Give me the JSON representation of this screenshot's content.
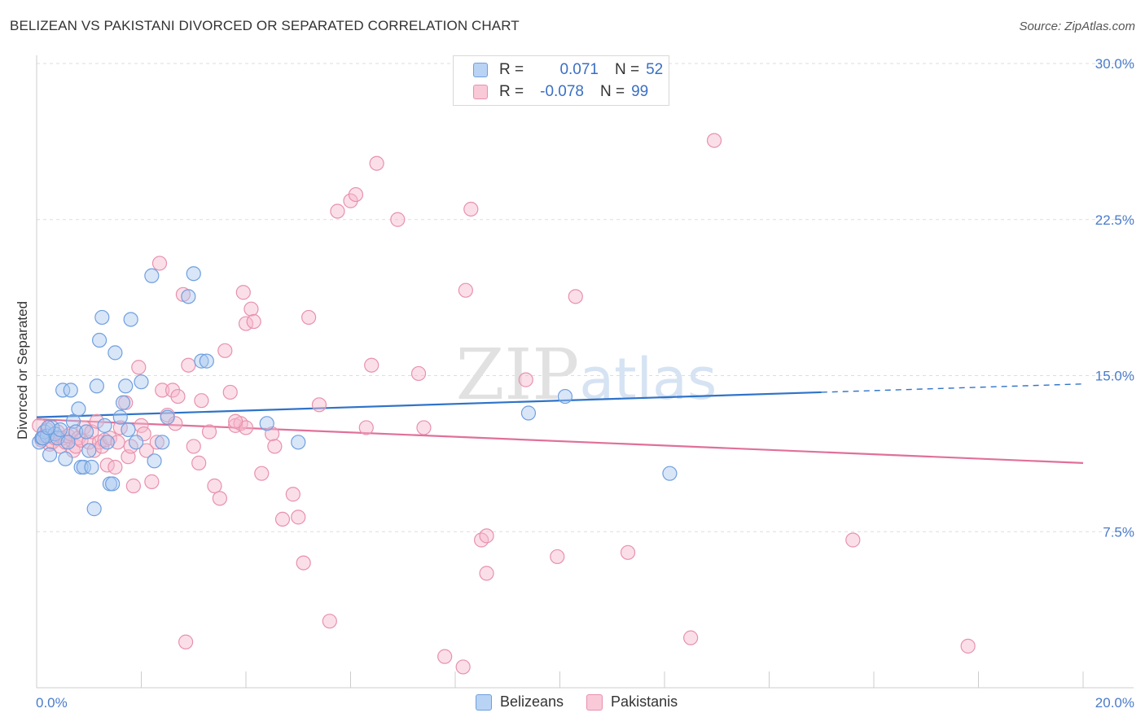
{
  "header": {
    "title": "BELIZEAN VS PAKISTANI DIVORCED OR SEPARATED CORRELATION CHART",
    "source": "Source: ZipAtlas.com"
  },
  "legend": {
    "rows": [
      {
        "r_label": "R =",
        "r_value": "0.071",
        "n_label": "N =",
        "n_value": "52"
      },
      {
        "r_label": "R =",
        "r_value": "-0.078",
        "n_label": "N =",
        "n_value": "99"
      }
    ]
  },
  "bottom_legend": [
    "Belizeans",
    "Pakistanis"
  ],
  "colors": {
    "blue_fill": "#a8c8f0",
    "blue_stroke": "#6f9fdf",
    "blue_line": "#2f73c9",
    "pink_fill": "#f7b8cc",
    "pink_stroke": "#e891ad",
    "pink_line": "#e0709a",
    "grid": "#dddddd",
    "axis_text": "#4a7cc9"
  },
  "chart_data": {
    "type": "scatter",
    "title": "BELIZEAN VS PAKISTANI DIVORCED OR SEPARATED CORRELATION CHART",
    "xlabel": "",
    "ylabel": "Divorced or Separated",
    "xlim": [
      0,
      20
    ],
    "ylim": [
      0,
      30
    ],
    "x_tick_labels": [
      "0.0%",
      "20.0%"
    ],
    "y_tick_labels": [
      "7.5%",
      "15.0%",
      "22.5%",
      "30.0%"
    ],
    "y_ticks": [
      7.5,
      15.0,
      22.5,
      30.0
    ],
    "grid": true,
    "legend_position": "top-center",
    "watermark": "ZIPatlas",
    "series": [
      {
        "name": "Belizeans",
        "r": 0.071,
        "n": 52,
        "trend": {
          "x0": 0,
          "y0": 13.0,
          "x1": 15.0,
          "y1": 14.2,
          "dashed_to_x": 20,
          "dashed_to_y": 14.6
        },
        "points": [
          [
            0.05,
            11.8
          ],
          [
            0.1,
            12.0
          ],
          [
            0.15,
            12.3
          ],
          [
            0.2,
            12.1
          ],
          [
            0.25,
            11.2
          ],
          [
            0.3,
            12.5
          ],
          [
            0.35,
            12.2
          ],
          [
            0.4,
            12.0
          ],
          [
            0.45,
            12.4
          ],
          [
            0.5,
            14.3
          ],
          [
            0.55,
            11.0
          ],
          [
            0.65,
            14.3
          ],
          [
            0.7,
            12.8
          ],
          [
            0.75,
            12.3
          ],
          [
            0.8,
            13.4
          ],
          [
            0.85,
            10.6
          ],
          [
            0.9,
            10.6
          ],
          [
            0.95,
            12.3
          ],
          [
            1.0,
            11.4
          ],
          [
            1.05,
            10.6
          ],
          [
            1.1,
            8.6
          ],
          [
            1.15,
            14.5
          ],
          [
            1.2,
            16.7
          ],
          [
            1.25,
            17.8
          ],
          [
            1.3,
            12.6
          ],
          [
            1.35,
            11.8
          ],
          [
            1.4,
            9.8
          ],
          [
            1.45,
            9.8
          ],
          [
            1.5,
            16.1
          ],
          [
            1.6,
            13.0
          ],
          [
            1.65,
            13.7
          ],
          [
            1.7,
            14.5
          ],
          [
            1.75,
            12.4
          ],
          [
            1.8,
            17.7
          ],
          [
            1.9,
            11.8
          ],
          [
            2.0,
            14.7
          ],
          [
            2.2,
            19.8
          ],
          [
            2.25,
            10.9
          ],
          [
            2.4,
            11.8
          ],
          [
            2.5,
            13.0
          ],
          [
            2.9,
            18.8
          ],
          [
            3.0,
            19.9
          ],
          [
            3.15,
            15.7
          ],
          [
            3.25,
            15.7
          ],
          [
            4.4,
            12.7
          ],
          [
            5.0,
            11.8
          ],
          [
            9.4,
            13.2
          ],
          [
            10.1,
            14.0
          ],
          [
            12.1,
            10.3
          ],
          [
            0.12,
            12.0
          ],
          [
            0.22,
            12.5
          ],
          [
            0.6,
            11.8
          ]
        ]
      },
      {
        "name": "Pakistanis",
        "r": -0.078,
        "n": 99,
        "trend": {
          "x0": 0,
          "y0": 12.9,
          "x1": 20,
          "y1": 10.8
        },
        "points": [
          [
            0.05,
            12.6
          ],
          [
            0.1,
            11.9
          ],
          [
            0.15,
            12.1
          ],
          [
            0.2,
            12.4
          ],
          [
            0.25,
            11.7
          ],
          [
            0.3,
            11.8
          ],
          [
            0.35,
            12.0
          ],
          [
            0.4,
            12.3
          ],
          [
            0.45,
            11.6
          ],
          [
            0.5,
            12.0
          ],
          [
            0.55,
            11.8
          ],
          [
            0.6,
            12.1
          ],
          [
            0.65,
            12.2
          ],
          [
            0.7,
            11.4
          ],
          [
            0.75,
            11.6
          ],
          [
            0.8,
            12.0
          ],
          [
            0.85,
            11.9
          ],
          [
            0.9,
            12.5
          ],
          [
            1.0,
            11.8
          ],
          [
            1.05,
            12.3
          ],
          [
            1.1,
            11.4
          ],
          [
            1.15,
            12.8
          ],
          [
            1.2,
            11.8
          ],
          [
            1.25,
            11.6
          ],
          [
            1.3,
            11.9
          ],
          [
            1.35,
            10.7
          ],
          [
            1.4,
            12.0
          ],
          [
            1.5,
            10.6
          ],
          [
            1.55,
            11.8
          ],
          [
            1.6,
            12.5
          ],
          [
            1.7,
            13.7
          ],
          [
            1.75,
            11.1
          ],
          [
            1.8,
            11.6
          ],
          [
            1.85,
            9.7
          ],
          [
            1.95,
            15.4
          ],
          [
            2.0,
            12.6
          ],
          [
            2.05,
            12.2
          ],
          [
            2.1,
            11.4
          ],
          [
            2.2,
            9.9
          ],
          [
            2.3,
            11.8
          ],
          [
            2.35,
            20.4
          ],
          [
            2.4,
            14.3
          ],
          [
            2.5,
            13.1
          ],
          [
            2.6,
            14.3
          ],
          [
            2.65,
            12.7
          ],
          [
            2.7,
            14.0
          ],
          [
            2.8,
            18.9
          ],
          [
            2.9,
            15.5
          ],
          [
            3.0,
            11.6
          ],
          [
            3.1,
            10.8
          ],
          [
            3.15,
            13.8
          ],
          [
            3.3,
            12.3
          ],
          [
            3.4,
            9.7
          ],
          [
            3.5,
            9.1
          ],
          [
            3.6,
            16.2
          ],
          [
            3.7,
            14.2
          ],
          [
            3.8,
            12.6
          ],
          [
            3.9,
            12.7
          ],
          [
            3.95,
            19.0
          ],
          [
            4.0,
            17.5
          ],
          [
            4.1,
            18.2
          ],
          [
            4.15,
            17.6
          ],
          [
            4.3,
            10.3
          ],
          [
            4.5,
            12.2
          ],
          [
            4.55,
            11.6
          ],
          [
            4.7,
            8.1
          ],
          [
            4.9,
            9.3
          ],
          [
            5.0,
            8.2
          ],
          [
            5.1,
            6.0
          ],
          [
            5.2,
            17.8
          ],
          [
            5.4,
            13.6
          ],
          [
            5.6,
            3.2
          ],
          [
            5.75,
            22.9
          ],
          [
            6.0,
            23.4
          ],
          [
            6.1,
            23.7
          ],
          [
            6.3,
            12.5
          ],
          [
            6.4,
            15.5
          ],
          [
            6.5,
            25.2
          ],
          [
            6.9,
            22.5
          ],
          [
            7.3,
            15.1
          ],
          [
            7.4,
            12.5
          ],
          [
            7.8,
            1.5
          ],
          [
            8.15,
            1.0
          ],
          [
            8.2,
            19.1
          ],
          [
            8.3,
            23.0
          ],
          [
            8.5,
            7.1
          ],
          [
            8.6,
            7.3
          ],
          [
            8.6,
            5.5
          ],
          [
            9.35,
            14.8
          ],
          [
            9.95,
            6.3
          ],
          [
            10.3,
            18.8
          ],
          [
            11.3,
            6.5
          ],
          [
            12.5,
            2.4
          ],
          [
            12.95,
            26.3
          ],
          [
            15.6,
            7.1
          ],
          [
            17.8,
            2.0
          ],
          [
            2.85,
            2.2
          ],
          [
            4.0,
            12.5
          ],
          [
            3.8,
            12.8
          ]
        ]
      }
    ]
  }
}
